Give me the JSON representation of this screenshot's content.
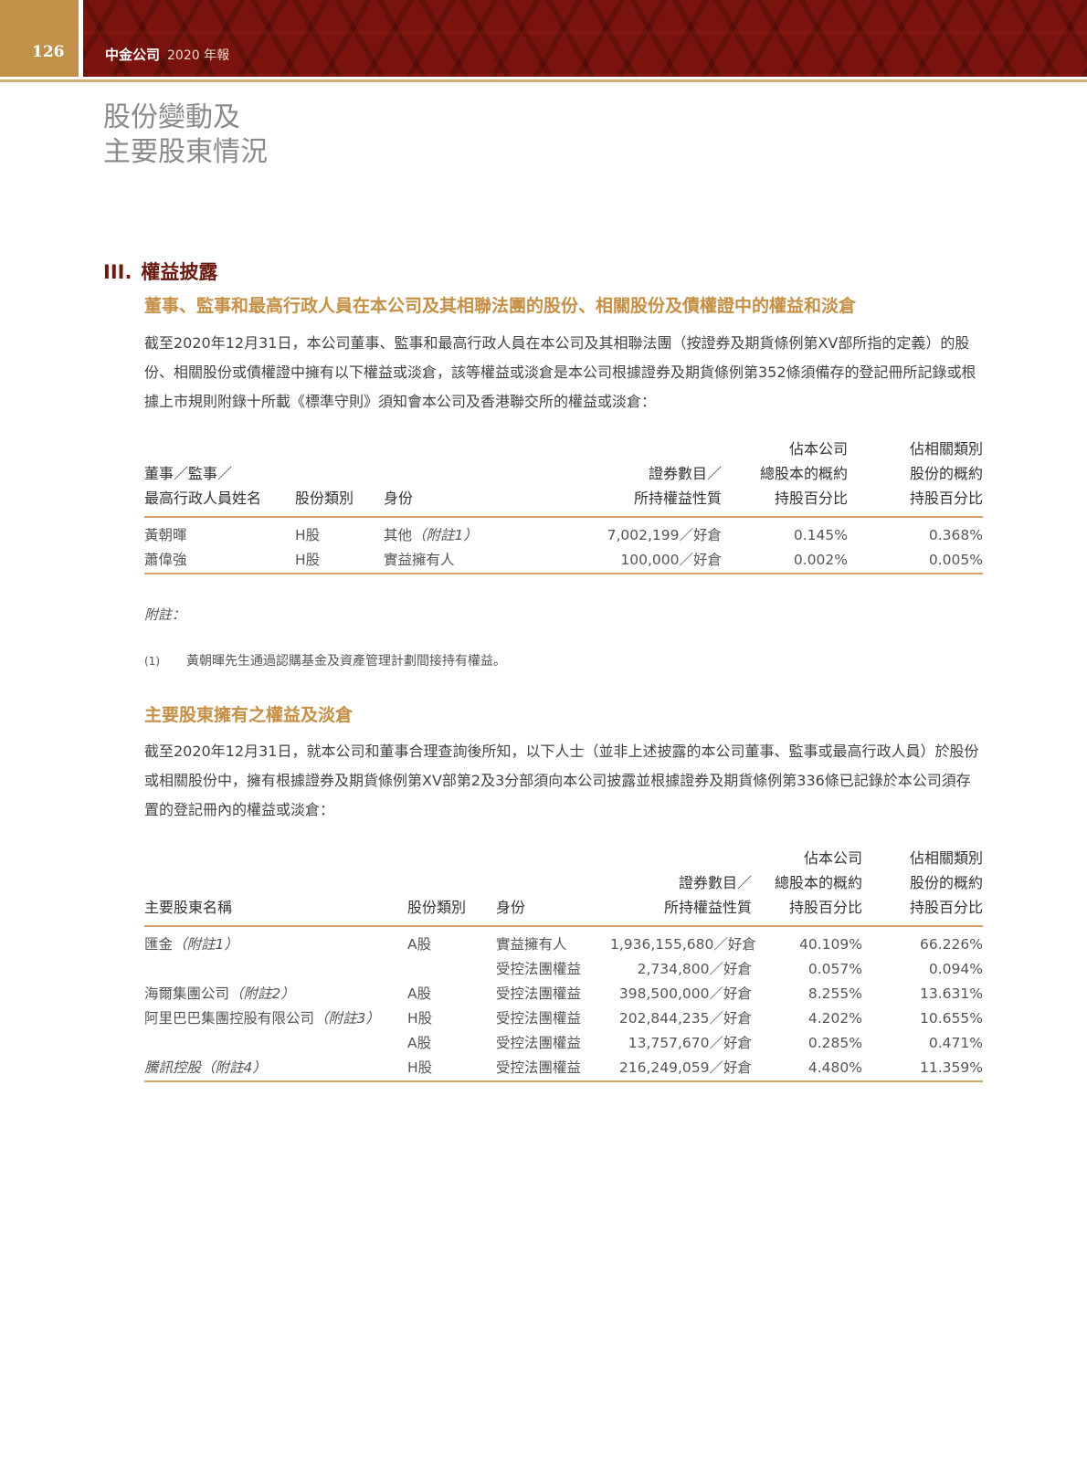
{
  "header": {
    "page_number": "126",
    "company": "中金公司",
    "report": "2020 年報"
  },
  "chapter_title": [
    "股份變動及",
    "主要股東情況"
  ],
  "section": {
    "numeral": "III.",
    "title": "權益披露"
  },
  "part1": {
    "heading": "董事、監事和最高行政人員在本公司及其相聯法團的股份、相關股份及債權證中的權益和淡倉",
    "paragraph": "截至2020年12月31日，本公司董事、監事和最高行政人員在本公司及其相聯法團（按證券及期貨條例第XV部所指的定義）的股份、相關股份或債權證中擁有以下權益或淡倉，該等權益或淡倉是本公司根據證券及期貨條例第352條須備存的登記冊所記錄或根據上市規則附錄十所載《標準守則》須知會本公司及香港聯交所的權益或淡倉：",
    "table": {
      "headers": {
        "name": [
          "董事／監事／",
          "最高行政人員姓名"
        ],
        "class": "股份類別",
        "capacity": "身份",
        "number": [
          "證券數目／",
          "所持權益性質"
        ],
        "pct_total": [
          "佔本公司",
          "總股本的概約",
          "持股百分比"
        ],
        "pct_class": [
          "佔相關類別",
          "股份的概約",
          "持股百分比"
        ]
      },
      "rows": [
        {
          "name": "黃朝暉",
          "class": "H股",
          "capacity": "其他",
          "note": "（附註1）",
          "number": "7,002,199／好倉",
          "pct_total": "0.145%",
          "pct_class": "0.368%"
        },
        {
          "name": "蕭偉強",
          "class": "H股",
          "capacity": "實益擁有人",
          "note": "",
          "number": "100,000／好倉",
          "pct_total": "0.002%",
          "pct_class": "0.005%"
        }
      ]
    },
    "notes_label": "附註：",
    "notes": [
      {
        "num": "(1)",
        "text": "黃朝暉先生通過認購基金及資產管理計劃間接持有權益。"
      }
    ]
  },
  "part2": {
    "heading": "主要股東擁有之權益及淡倉",
    "paragraph": "截至2020年12月31日，就本公司和董事合理查詢後所知，以下人士（並非上述披露的本公司董事、監事或最高行政人員）於股份或相關股份中，擁有根據證券及期貨條例第XV部第2及3分部須向本公司披露並根據證券及期貨條例第336條已記錄於本公司須存置的登記冊內的權益或淡倉：",
    "table": {
      "headers": {
        "name": "主要股東名稱",
        "class": "股份類別",
        "capacity": "身份",
        "number": [
          "證券數目／",
          "所持權益性質"
        ],
        "pct_total": [
          "佔本公司",
          "總股本的概約",
          "持股百分比"
        ],
        "pct_class": [
          "佔相關類別",
          "股份的概約",
          "持股百分比"
        ]
      },
      "rows": [
        {
          "name": "匯金",
          "note": "（附註1）",
          "class": "A股",
          "capacity": "實益擁有人",
          "number": "1,936,155,680／好倉",
          "pct_total": "40.109%",
          "pct_class": "66.226%"
        },
        {
          "name": "",
          "note": "",
          "class": "",
          "capacity": "受控法團權益",
          "number": "2,734,800／好倉",
          "pct_total": "0.057%",
          "pct_class": "0.094%"
        },
        {
          "name": "海爾集團公司",
          "note": "（附註2）",
          "class": "A股",
          "capacity": "受控法團權益",
          "number": "398,500,000／好倉",
          "pct_total": "8.255%",
          "pct_class": "13.631%"
        },
        {
          "name": "阿里巴巴集團控股有限公司",
          "note": "（附註3）",
          "class": "H股",
          "capacity": "受控法團權益",
          "number": "202,844,235／好倉",
          "pct_total": "4.202%",
          "pct_class": "10.655%"
        },
        {
          "name": "",
          "note": "",
          "class": "A股",
          "capacity": "受控法團權益",
          "number": "13,757,670／好倉",
          "pct_total": "0.285%",
          "pct_class": "0.471%"
        },
        {
          "name": "騰訊控股",
          "note": "（附註4）",
          "class": "H股",
          "capacity": "受控法團權益",
          "number": "216,249,059／好倉",
          "pct_total": "4.480%",
          "pct_class": "11.359%"
        }
      ]
    }
  },
  "colors": {
    "accent_gold": "#c58f45",
    "section_red": "#6b1a10",
    "banner_red": "#7a130d"
  }
}
